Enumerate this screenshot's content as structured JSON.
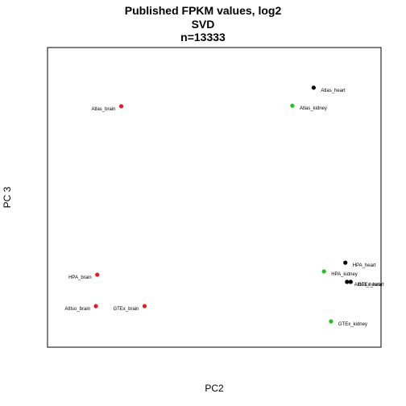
{
  "chart_data": {
    "type": "scatter",
    "title_lines": [
      "Published FPKM values, log2",
      "SVD",
      "n=13333"
    ],
    "xlabel": "PC2",
    "ylabel": "PC 3",
    "xlim": [
      0,
      100
    ],
    "ylim": [
      0,
      100
    ],
    "axes_ticks_visible": false,
    "grid": false,
    "legend": "none",
    "colors": {
      "brain": "#e8191f",
      "kidney": "#1fc21f",
      "heart": "#000000"
    },
    "points": [
      {
        "label": "Atlas_brain",
        "x": 22.1,
        "y": 80.4,
        "color": "#e8191f",
        "label_side": "left"
      },
      {
        "label": "Atlas_heart",
        "x": 79.8,
        "y": 86.6,
        "color": "#000000",
        "label_side": "right"
      },
      {
        "label": "Atlas_kidney",
        "x": 73.4,
        "y": 80.6,
        "color": "#1fc21f",
        "label_side": "right"
      },
      {
        "label": "HPA_brain",
        "x": 14.9,
        "y": 24.2,
        "color": "#e8191f",
        "label_side": "left"
      },
      {
        "label": "AltIso_brain",
        "x": 14.5,
        "y": 13.7,
        "color": "#e8191f",
        "label_side": "left"
      },
      {
        "label": "GTEx_brain",
        "x": 29.1,
        "y": 13.7,
        "color": "#e8191f",
        "label_side": "left"
      },
      {
        "label": "HPA_heart",
        "x": 89.3,
        "y": 28.2,
        "color": "#000000",
        "label_side": "right"
      },
      {
        "label": "HPA_kidney",
        "x": 82.9,
        "y": 25.3,
        "color": "#1fc21f",
        "label_side": "right"
      },
      {
        "label": "AltIso_heart",
        "x": 89.8,
        "y": 21.8,
        "color": "#000000",
        "label_side": "right"
      },
      {
        "label": "GTEx_heart",
        "x": 90.9,
        "y": 21.8,
        "color": "#000000",
        "label_side": "right"
      },
      {
        "label": "GTEx_kidney",
        "x": 85.0,
        "y": 8.6,
        "color": "#1fc21f",
        "label_side": "right"
      }
    ]
  }
}
